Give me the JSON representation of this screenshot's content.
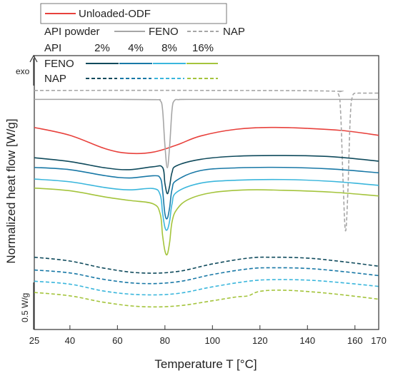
{
  "chart_data": {
    "type": "line",
    "title": "",
    "xlabel": "Temperature T [°C]",
    "ylabel": "Normalized heat flow [W/g]",
    "exo_label": "exo",
    "scale_bar_label": "0.5 W/g",
    "xlim": [
      25,
      170
    ],
    "x_ticks": [
      25,
      40,
      60,
      80,
      100,
      120,
      140,
      160,
      170
    ],
    "y_ticks_shown": false,
    "grid": false,
    "legend": {
      "placement": "top-left",
      "row1_label": "Unloaded-ODF",
      "row2_label": "API powder",
      "row2_feno": "FENO",
      "row2_nap": "NAP",
      "row3_label": "API",
      "row3_headers": [
        "2%",
        "4%",
        "8%",
        "16%"
      ],
      "row4_label": "FENO",
      "row5_label": "NAP"
    },
    "colors": {
      "unloaded": "#e8413c",
      "api_powder": "#a6a6a6",
      "loading_2": "#0f4a5c",
      "loading_4": "#1878a6",
      "loading_8": "#3ab6dc",
      "loading_16": "#a4c43c",
      "axis": "#333333"
    },
    "y_unit": "relative offset",
    "series": [
      {
        "name": "Unloaded-ODF",
        "key": "unloaded",
        "dashed": false,
        "x": [
          25,
          40,
          55,
          65,
          75,
          85,
          95,
          110,
          125,
          140,
          155,
          170
        ],
        "y": [
          7.4,
          7.05,
          6.45,
          6.25,
          6.3,
          6.62,
          7.02,
          7.32,
          7.4,
          7.36,
          7.26,
          7.05
        ]
      },
      {
        "name": "FENO",
        "key": "api_powder",
        "dashed": false,
        "x": [
          25,
          60,
          76,
          78,
          79,
          80,
          81,
          82,
          83,
          84,
          86,
          90,
          120,
          170
        ],
        "y": [
          8.65,
          8.65,
          8.64,
          8.6,
          8.2,
          6.6,
          5.6,
          6.6,
          8.2,
          8.6,
          8.64,
          8.65,
          8.65,
          8.65
        ]
      },
      {
        "name": "NAP",
        "key": "api_powder",
        "dashed": true,
        "x": [
          25,
          100,
          150,
          153,
          154,
          155,
          156,
          157,
          158,
          159,
          161,
          163,
          170
        ],
        "y": [
          9.05,
          9.05,
          9.02,
          8.9,
          8.0,
          5.0,
          2.8,
          4.5,
          7.8,
          8.8,
          8.92,
          8.93,
          8.93
        ]
      },
      {
        "name": "FENO 2%",
        "key": "loading_2",
        "dashed": false,
        "x": [
          25,
          40,
          55,
          65,
          75,
          79,
          80,
          81,
          82,
          83,
          85,
          95,
          110,
          130,
          150,
          170
        ],
        "y": [
          6.05,
          5.88,
          5.6,
          5.52,
          5.65,
          5.62,
          4.9,
          4.45,
          4.8,
          5.4,
          5.7,
          5.98,
          6.12,
          6.15,
          6.1,
          5.9
        ]
      },
      {
        "name": "FENO 4%",
        "key": "loading_4",
        "dashed": false,
        "x": [
          25,
          40,
          55,
          65,
          75,
          78,
          79,
          80,
          81,
          82,
          83,
          85,
          95,
          110,
          130,
          150,
          170
        ],
        "y": [
          5.62,
          5.52,
          5.25,
          5.15,
          5.25,
          5.15,
          4.6,
          3.55,
          3.35,
          3.85,
          4.65,
          5.05,
          5.48,
          5.6,
          5.62,
          5.55,
          5.38
        ]
      },
      {
        "name": "FENO 8%",
        "key": "loading_8",
        "dashed": false,
        "x": [
          25,
          40,
          55,
          65,
          75,
          78,
          79,
          80,
          81,
          82,
          83,
          85,
          95,
          110,
          130,
          150,
          170
        ],
        "y": [
          5.1,
          4.98,
          4.72,
          4.62,
          4.68,
          4.4,
          3.6,
          2.95,
          2.85,
          3.25,
          4.0,
          4.52,
          4.92,
          5.05,
          5.08,
          5.0,
          4.82
        ]
      },
      {
        "name": "FENO 16%",
        "key": "loading_16",
        "dashed": false,
        "x": [
          25,
          40,
          55,
          65,
          75,
          78,
          79,
          80,
          81,
          82,
          83,
          85,
          90,
          100,
          115,
          130,
          150,
          170
        ],
        "y": [
          4.7,
          4.58,
          4.3,
          4.15,
          4.0,
          3.55,
          2.6,
          1.9,
          1.75,
          2.3,
          3.2,
          3.75,
          4.2,
          4.5,
          4.62,
          4.6,
          4.52,
          4.35
        ]
      },
      {
        "name": "NAP 2%",
        "key": "loading_2",
        "dashed": true,
        "x": [
          25,
          40,
          55,
          70,
          85,
          100,
          115,
          125,
          140,
          155,
          170
        ],
        "y": [
          1.62,
          1.45,
          1.12,
          0.92,
          0.98,
          1.32,
          1.58,
          1.62,
          1.58,
          1.42,
          1.22
        ]
      },
      {
        "name": "NAP 4%",
        "key": "loading_4",
        "dashed": true,
        "x": [
          25,
          40,
          55,
          70,
          85,
          100,
          115,
          125,
          140,
          155,
          170
        ],
        "y": [
          1.05,
          0.92,
          0.62,
          0.45,
          0.52,
          0.85,
          1.1,
          1.15,
          1.12,
          0.98,
          0.8
        ]
      },
      {
        "name": "NAP 8%",
        "key": "loading_8",
        "dashed": true,
        "x": [
          25,
          40,
          55,
          70,
          85,
          100,
          115,
          125,
          140,
          155,
          170
        ],
        "y": [
          0.55,
          0.42,
          0.1,
          -0.05,
          0.0,
          0.3,
          0.55,
          0.62,
          0.6,
          0.48,
          0.32
        ]
      },
      {
        "name": "NAP 16%",
        "key": "loading_16",
        "dashed": true,
        "x": [
          25,
          40,
          55,
          70,
          85,
          100,
          110,
          115,
          120,
          130,
          145,
          160,
          170
        ],
        "y": [
          0.05,
          -0.1,
          -0.4,
          -0.58,
          -0.55,
          -0.32,
          -0.15,
          -0.1,
          0.1,
          0.15,
          0.05,
          -0.12,
          -0.25
        ]
      }
    ]
  }
}
